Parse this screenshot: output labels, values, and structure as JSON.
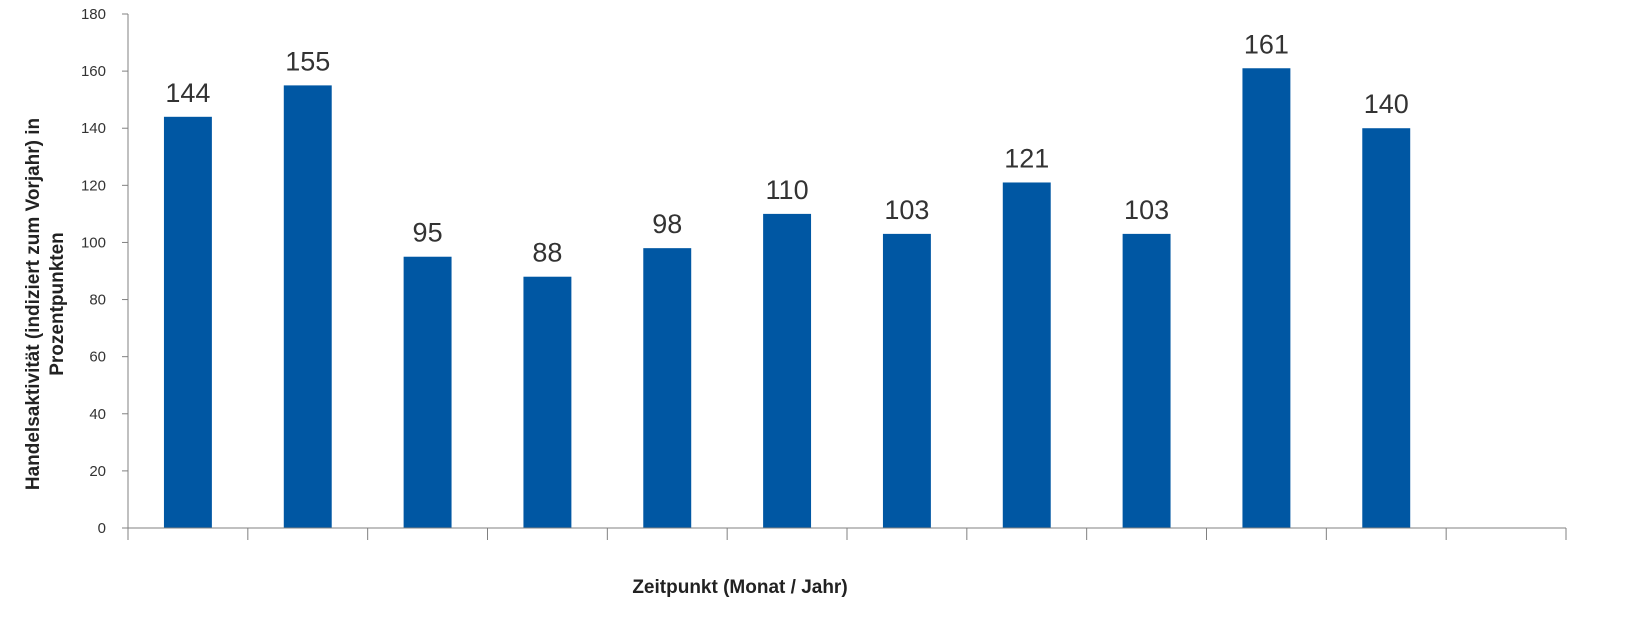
{
  "chart_data": {
    "type": "bar",
    "title": "",
    "xlabel": "Zeitpunkt (Monat / Jahr)",
    "ylabel_line1": "Handelsaktivität (indiziert zum Vorjahr) in",
    "ylabel_line2": "Prozentpunkten",
    "ylim": [
      0,
      180
    ],
    "yticks": [
      0,
      20,
      40,
      60,
      80,
      100,
      120,
      140,
      160,
      180
    ],
    "categories": [
      "",
      "",
      "",
      "",
      "",
      "",
      "",
      "",
      "",
      "",
      "",
      ""
    ],
    "values": [
      144,
      155,
      95,
      88,
      98,
      110,
      103,
      121,
      103,
      161,
      140,
      null
    ],
    "bar_color": "#0057A3",
    "grid": false,
    "legend": "none"
  }
}
